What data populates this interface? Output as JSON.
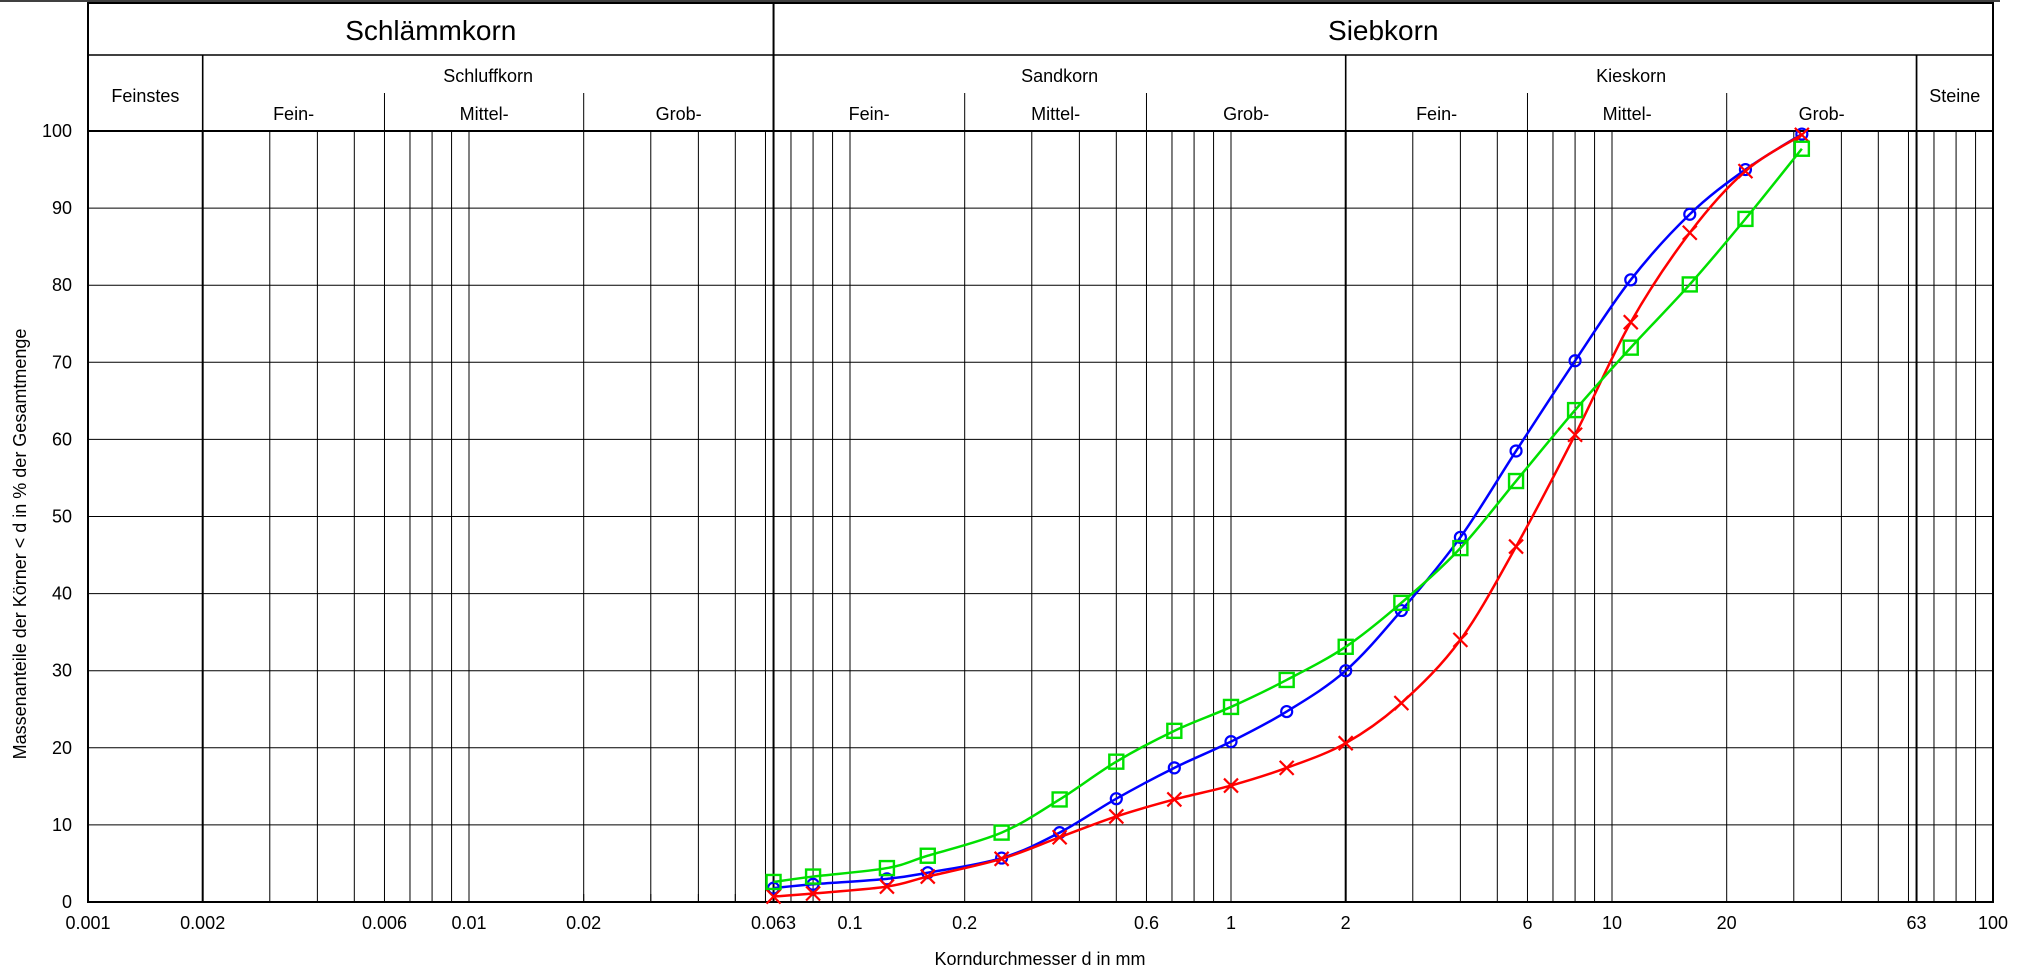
{
  "chart_data": {
    "type": "line",
    "x_scale": "log",
    "ylim": [
      0,
      100
    ],
    "xlim": [
      0.001,
      100
    ],
    "xlabel": "Korndurchmesser d in mm",
    "ylabel": "Massenanteile der Körner < d in % der Gesamtmenge",
    "grid": true,
    "header": {
      "top": [
        {
          "label": "Schlämmkorn",
          "from": 0.001,
          "to": 0.063
        },
        {
          "label": "Siebkorn",
          "from": 0.063,
          "to": 100
        }
      ],
      "groups": [
        {
          "label": "Feinstes",
          "from": 0.001,
          "to": 0.002,
          "full_height": true
        },
        {
          "label": "Schluffkorn",
          "from": 0.002,
          "to": 0.063
        },
        {
          "label": "Sandkorn",
          "from": 0.063,
          "to": 2
        },
        {
          "label": "Kieskorn",
          "from": 2,
          "to": 63
        },
        {
          "label": "Steine",
          "from": 63,
          "to": 100,
          "full_height": true
        }
      ],
      "subgroups": [
        {
          "label": "Fein-",
          "from": 0.002,
          "to": 0.006
        },
        {
          "label": "Mittel-",
          "from": 0.006,
          "to": 0.02
        },
        {
          "label": "Grob-",
          "from": 0.02,
          "to": 0.063
        },
        {
          "label": "Fein-",
          "from": 0.063,
          "to": 0.2
        },
        {
          "label": "Mittel-",
          "from": 0.2,
          "to": 0.6
        },
        {
          "label": "Grob-",
          "from": 0.6,
          "to": 2
        },
        {
          "label": "Fein-",
          "from": 2,
          "to": 6
        },
        {
          "label": "Mittel-",
          "from": 6,
          "to": 20
        },
        {
          "label": "Grob-",
          "from": 20,
          "to": 63
        }
      ]
    },
    "x_ticks": [
      {
        "value": 0.001,
        "label": "0.001"
      },
      {
        "value": 0.002,
        "label": "0.002"
      },
      {
        "value": 0.006,
        "label": "0.006"
      },
      {
        "value": 0.01,
        "label": "0.01"
      },
      {
        "value": 0.02,
        "label": "0.02"
      },
      {
        "value": 0.063,
        "label": "0.063"
      },
      {
        "value": 0.1,
        "label": "0.1"
      },
      {
        "value": 0.2,
        "label": "0.2"
      },
      {
        "value": 0.6,
        "label": "0.6"
      },
      {
        "value": 1,
        "label": "1"
      },
      {
        "value": 2,
        "label": "2"
      },
      {
        "value": 6,
        "label": "6"
      },
      {
        "value": 10,
        "label": "10"
      },
      {
        "value": 20,
        "label": "20"
      },
      {
        "value": 63,
        "label": "63"
      },
      {
        "value": 100,
        "label": "100"
      }
    ],
    "y_ticks": [
      0,
      10,
      20,
      30,
      40,
      50,
      60,
      70,
      80,
      90,
      100
    ],
    "series": [
      {
        "marker": "circle",
        "color": "#0000ff",
        "x": [
          0.063,
          0.08,
          0.125,
          0.16,
          0.25,
          0.355,
          0.5,
          0.71,
          1.0,
          1.4,
          2.0,
          2.8,
          4.0,
          5.6,
          8.0,
          11.2,
          16.0,
          22.4,
          31.5
        ],
        "y": [
          1.8,
          2.3,
          3.0,
          3.8,
          5.7,
          9.0,
          13.4,
          17.4,
          20.8,
          24.7,
          30.0,
          37.8,
          47.3,
          58.5,
          70.2,
          80.7,
          89.2,
          95.0,
          99.6
        ]
      },
      {
        "marker": "x",
        "color": "#ff0000",
        "x": [
          0.063,
          0.08,
          0.125,
          0.16,
          0.25,
          0.355,
          0.5,
          0.71,
          1.0,
          1.4,
          2.0,
          2.8,
          4.0,
          5.6,
          8.0,
          11.2,
          16.0,
          22.4,
          31.5
        ],
        "y": [
          0.7,
          1.1,
          2.0,
          3.3,
          5.6,
          8.4,
          11.1,
          13.3,
          15.1,
          17.4,
          20.6,
          25.8,
          34.0,
          46.1,
          60.6,
          75.2,
          86.8,
          94.8,
          99.5
        ]
      },
      {
        "marker": "square",
        "color": "#00e000",
        "x": [
          0.063,
          0.08,
          0.125,
          0.16,
          0.25,
          0.355,
          0.5,
          0.71,
          1.0,
          1.4,
          2.0,
          2.8,
          4.0,
          5.6,
          8.0,
          11.2,
          16.0,
          22.4,
          31.5
        ],
        "y": [
          2.6,
          3.3,
          4.4,
          6.0,
          9.0,
          13.3,
          18.2,
          22.2,
          25.3,
          28.8,
          33.1,
          38.8,
          45.9,
          54.6,
          63.8,
          71.9,
          80.1,
          88.6,
          97.7
        ]
      }
    ]
  }
}
